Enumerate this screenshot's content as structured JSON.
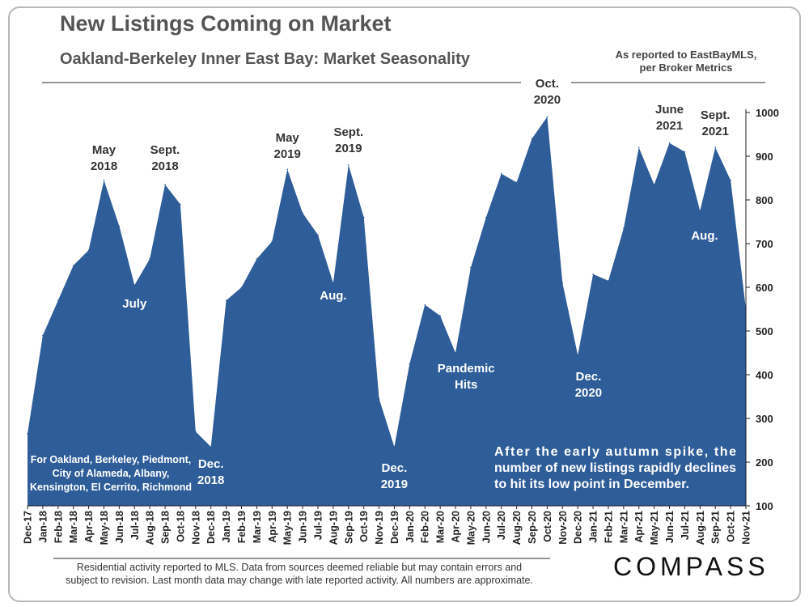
{
  "header": {
    "title": "New Listings Coming on Market",
    "subtitle": "Oakland-Berkeley Inner East Bay: Market Seasonality",
    "source_line1": "As reported to EastBayMLS,",
    "source_line2": "per Broker Metrics"
  },
  "footer": {
    "note_line1": "Residential activity reported to MLS. Data from sources deemed reliable but may contain errors and",
    "note_line2": "subject to revision. Last month data may change with late reported activity. All numbers are approximate.",
    "logo": "COMPASS"
  },
  "colors": {
    "area": "#2e5d99",
    "dark_text": "#333333",
    "light_text": "#ffffff"
  },
  "chart_data": {
    "type": "area",
    "title": "New Listings Coming on Market",
    "subtitle": "Oakland-Berkeley Inner East Bay: Market Seasonality",
    "ylim": [
      100,
      1000
    ],
    "yticks": [
      100,
      200,
      300,
      400,
      500,
      600,
      700,
      800,
      900,
      1000
    ],
    "y_axis_side": "right",
    "categories": [
      "Dec-17",
      "Jan-18",
      "Feb-18",
      "Mar-18",
      "Apr-18",
      "May-18",
      "Jun-18",
      "Jul-18",
      "Aug-18",
      "Sep-18",
      "Oct-18",
      "Nov-18",
      "Dec-18",
      "Jan-19",
      "Feb-19",
      "Mar-19",
      "Apr-19",
      "May-19",
      "Jun-19",
      "Jul-19",
      "Aug-19",
      "Sep-19",
      "Oct-19",
      "Nov-19",
      "Dec-19",
      "Jan-20",
      "Feb-20",
      "Mar-20",
      "Apr-20",
      "May-20",
      "Jun-20",
      "Jul-20",
      "Aug-20",
      "Sep-20",
      "Oct-20",
      "Nov-20",
      "Dec-20",
      "Jan-21",
      "Feb-21",
      "Mar-21",
      "Apr-21",
      "May-21",
      "Jun-21",
      "Jul-21",
      "Aug-21",
      "Sep-21",
      "Oct-21",
      "Nov-21"
    ],
    "values": [
      265,
      490,
      570,
      650,
      685,
      845,
      740,
      605,
      665,
      835,
      790,
      270,
      235,
      570,
      600,
      665,
      705,
      870,
      770,
      720,
      610,
      880,
      760,
      345,
      235,
      425,
      560,
      535,
      450,
      645,
      760,
      860,
      840,
      940,
      990,
      610,
      445,
      630,
      615,
      735,
      920,
      835,
      930,
      910,
      775,
      920,
      845,
      550
    ],
    "annotations": [
      {
        "index": 5,
        "lines": [
          "May",
          "2018"
        ],
        "color": "dark",
        "y": 190
      },
      {
        "index": 9,
        "lines": [
          "Sept.",
          "2018"
        ],
        "color": "dark",
        "y": 190
      },
      {
        "index": 7,
        "lines": [
          "July"
        ],
        "color": "light",
        "y": 380
      },
      {
        "index": 12,
        "lines": [
          "Dec.",
          "2018"
        ],
        "color": "light",
        "y": 578
      },
      {
        "index": 17,
        "lines": [
          "May",
          "2019"
        ],
        "color": "dark",
        "y": 175
      },
      {
        "index": 21,
        "lines": [
          "Sept.",
          "2019"
        ],
        "color": "dark",
        "y": 168
      },
      {
        "index": 20,
        "lines": [
          "Aug."
        ],
        "color": "light",
        "y": 370
      },
      {
        "index": 24,
        "lines": [
          "Dec.",
          "2019"
        ],
        "color": "light",
        "y": 583
      },
      {
        "index": 28.7,
        "lines": [
          "Pandemic",
          "Hits"
        ],
        "color": "light",
        "y": 460
      },
      {
        "index": 34,
        "lines": [
          "Oct.",
          "2020"
        ],
        "color": "dark",
        "y": 108
      },
      {
        "index": 36.7,
        "lines": [
          "Dec.",
          "2020"
        ],
        "color": "light",
        "y": 470
      },
      {
        "index": 42,
        "lines": [
          "June",
          "2021"
        ],
        "color": "dark",
        "y": 140
      },
      {
        "index": 45,
        "lines": [
          "Sept.",
          "2021"
        ],
        "color": "dark",
        "y": 147
      },
      {
        "index": 44.3,
        "lines": [
          "Aug."
        ],
        "color": "light",
        "y": 296
      }
    ],
    "inset_note": [
      "For Oakland, Berkeley, Piedmont,",
      "City of Alameda, Albany,",
      "Kensington, El Cerrito, Richmond"
    ],
    "callout": [
      "After the early autumn spike, the",
      "number of new listings rapidly declines",
      "to hit its low point in December."
    ]
  }
}
